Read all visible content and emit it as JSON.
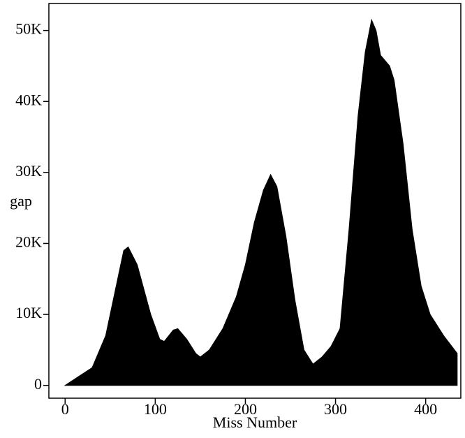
{
  "chart_data": {
    "type": "area",
    "x_label": "Miss Number",
    "y_label": "gap",
    "color": "#000000",
    "x": [
      0,
      30,
      45,
      55,
      65,
      70,
      80,
      95,
      105,
      110,
      120,
      125,
      135,
      145,
      150,
      160,
      175,
      190,
      200,
      210,
      220,
      228,
      235,
      245,
      255,
      265,
      275,
      285,
      295,
      305,
      315,
      325,
      333,
      340,
      345,
      350,
      360,
      365,
      375,
      385,
      395,
      405,
      420,
      435
    ],
    "values": [
      0,
      2500,
      7000,
      13000,
      19000,
      19500,
      17000,
      10000,
      6500,
      6200,
      7800,
      8000,
      6500,
      4500,
      4000,
      5000,
      8000,
      12500,
      17000,
      23000,
      27500,
      29700,
      28000,
      21000,
      12000,
      5000,
      3000,
      4000,
      5500,
      8000,
      22000,
      38000,
      47000,
      51500,
      50000,
      46500,
      45000,
      43000,
      34000,
      22000,
      14000,
      10000,
      7000,
      4500
    ],
    "xlim": [
      -18,
      439
    ],
    "ylim": [
      -1800,
      53800
    ],
    "xticks": [
      0,
      100,
      200,
      300,
      400
    ],
    "yticks": [
      0,
      {
        "value": 10000,
        "label": "10K"
      },
      {
        "value": 20000,
        "label": "20K"
      },
      {
        "value": 30000,
        "label": "30K"
      },
      {
        "value": 40000,
        "label": "40K"
      },
      {
        "value": 50000,
        "label": "50K"
      }
    ]
  }
}
